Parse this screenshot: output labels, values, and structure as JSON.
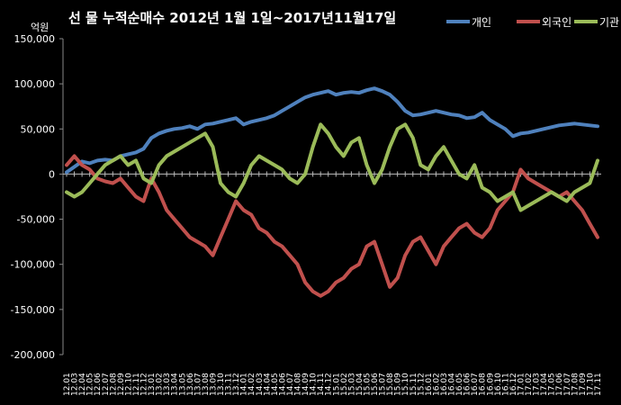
{
  "chart_data": {
    "type": "line",
    "title": "선 물 누적순매수 2012년 1월 1일~2017년11월17일",
    "ylabel": "억원",
    "ylim": [
      -200000,
      150000
    ],
    "yticks": [
      150000,
      100000,
      50000,
      0,
      -50000,
      -100000,
      -150000,
      -200000
    ],
    "ytick_labels": [
      "150,000",
      "100,000",
      "50,000",
      "0",
      "-50,000",
      "-100,000",
      "-150,000",
      "-200,000"
    ],
    "x": [
      "12.01",
      "12.03",
      "12.04",
      "12.05",
      "12.06",
      "12.07",
      "12.08",
      "12.09",
      "12.10",
      "12.11",
      "12.12",
      "13.01",
      "13.02",
      "13.03",
      "13.04",
      "13.05",
      "13.06",
      "13.07",
      "13.08",
      "13.09",
      "13.10",
      "13.11",
      "13.12",
      "14.01",
      "14.02",
      "14.03",
      "14.04",
      "14.05",
      "14.06",
      "14.07",
      "14.08",
      "14.09",
      "14.10",
      "14.11",
      "14.12",
      "15.01",
      "15.02",
      "15.03",
      "15.04",
      "15.05",
      "15.06",
      "15.07",
      "15.08",
      "15.09",
      "15.10",
      "15.11",
      "15.12",
      "16.01",
      "16.02",
      "16.03",
      "16.04",
      "16.05",
      "16.06",
      "16.07",
      "16.08",
      "16.09",
      "16.10",
      "16.11",
      "16.12",
      "17.01",
      "17.02",
      "17.03",
      "17.04",
      "17.05",
      "17.06",
      "17.07",
      "17.08",
      "17.09",
      "17.10",
      "17.11"
    ],
    "legend_position": "top-right",
    "grid": false,
    "series": [
      {
        "name": "개인",
        "color": "#4f81bd",
        "values": [
          2000,
          8000,
          14000,
          12000,
          15000,
          16000,
          15000,
          20000,
          22000,
          24000,
          28000,
          40000,
          45000,
          48000,
          50000,
          51000,
          53000,
          50000,
          55000,
          56000,
          58000,
          60000,
          62000,
          55000,
          58000,
          60000,
          62000,
          65000,
          70000,
          75000,
          80000,
          85000,
          88000,
          90000,
          92000,
          88000,
          90000,
          91000,
          90000,
          93000,
          95000,
          92000,
          88000,
          80000,
          70000,
          65000,
          66000,
          68000,
          70000,
          68000,
          66000,
          65000,
          62000,
          63000,
          68000,
          60000,
          55000,
          50000,
          42000,
          45000,
          46000,
          48000,
          50000,
          52000,
          54000,
          55000,
          56000,
          55000,
          54000,
          53000
        ]
      },
      {
        "name": "외국인",
        "color": "#c0504d",
        "values": [
          10000,
          20000,
          10000,
          5000,
          -5000,
          -8000,
          -10000,
          -5000,
          -15000,
          -25000,
          -30000,
          -5000,
          -20000,
          -40000,
          -50000,
          -60000,
          -70000,
          -75000,
          -80000,
          -90000,
          -70000,
          -50000,
          -30000,
          -40000,
          -45000,
          -60000,
          -65000,
          -75000,
          -80000,
          -90000,
          -100000,
          -120000,
          -130000,
          -135000,
          -130000,
          -120000,
          -115000,
          -105000,
          -100000,
          -80000,
          -75000,
          -100000,
          -125000,
          -115000,
          -90000,
          -75000,
          -70000,
          -85000,
          -100000,
          -80000,
          -70000,
          -60000,
          -55000,
          -65000,
          -70000,
          -60000,
          -40000,
          -30000,
          -20000,
          5000,
          -5000,
          -10000,
          -15000,
          -20000,
          -25000,
          -20000,
          -30000,
          -40000,
          -55000,
          -70000
        ]
      },
      {
        "name": "기관",
        "color": "#9bbb59",
        "values": [
          -20000,
          -25000,
          -20000,
          -10000,
          0,
          10000,
          15000,
          20000,
          10000,
          15000,
          -5000,
          -10000,
          10000,
          20000,
          25000,
          30000,
          35000,
          40000,
          45000,
          30000,
          -10000,
          -20000,
          -25000,
          -10000,
          10000,
          20000,
          15000,
          10000,
          5000,
          -5000,
          -10000,
          0,
          30000,
          55000,
          45000,
          30000,
          20000,
          35000,
          40000,
          10000,
          -10000,
          5000,
          30000,
          50000,
          55000,
          40000,
          10000,
          5000,
          20000,
          30000,
          15000,
          0,
          -5000,
          10000,
          -15000,
          -20000,
          -30000,
          -25000,
          -20000,
          -40000,
          -35000,
          -30000,
          -25000,
          -20000,
          -25000,
          -30000,
          -20000,
          -15000,
          -10000,
          15000
        ]
      }
    ]
  }
}
